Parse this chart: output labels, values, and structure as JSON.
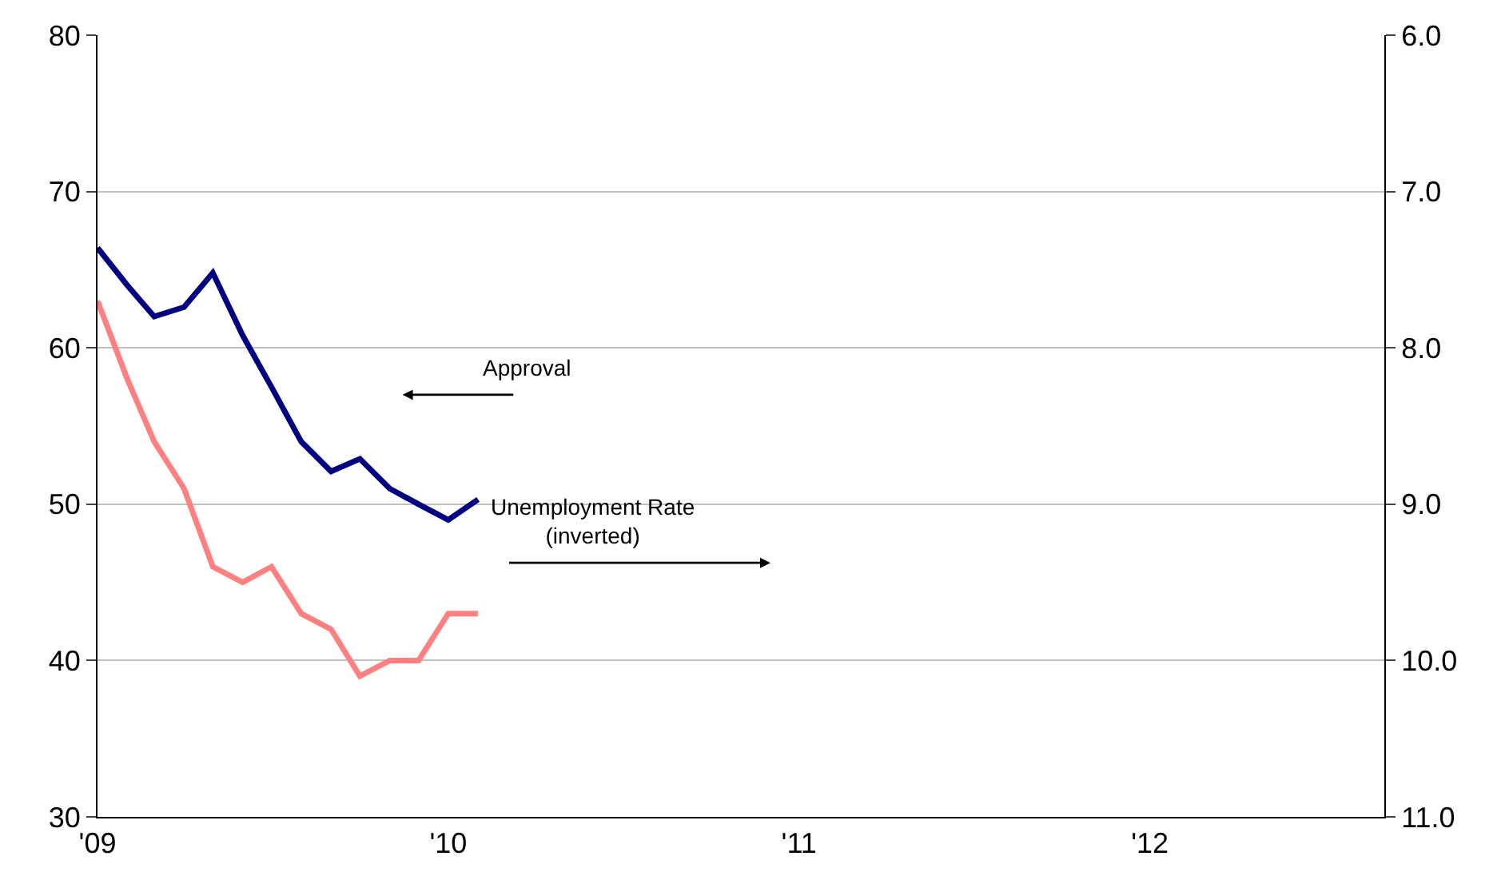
{
  "chart_data": {
    "type": "line",
    "x": [
      "2009-01",
      "2009-02",
      "2009-03",
      "2009-04",
      "2009-05",
      "2009-06",
      "2009-07",
      "2009-08",
      "2009-09",
      "2009-10",
      "2009-11",
      "2009-12",
      "2010-01",
      "2010-02"
    ],
    "series": [
      {
        "name": "Approval",
        "color": "#000080",
        "values": [
          66.4,
          64.0,
          62.0,
          62.6,
          64.8,
          60.8,
          57.5,
          54.0,
          52.1,
          52.9,
          51.0,
          50.0,
          49.0,
          50.3
        ]
      },
      {
        "name": "Unemployment Rate\n(inverted)",
        "color": "#ff8080",
        "axis": "y2",
        "values": [
          7.7,
          8.2,
          8.6,
          8.9,
          9.4,
          9.5,
          9.4,
          9.7,
          9.8,
          10.1,
          10.0,
          10.0,
          9.7,
          9.7
        ]
      }
    ],
    "xlim": [
      "2009-01",
      "2012-09"
    ],
    "xticks": [
      {
        "value": "2009-01",
        "label": "'09"
      },
      {
        "value": "2010-01",
        "label": "'10"
      },
      {
        "value": "2011-01",
        "label": "'11"
      },
      {
        "value": "2012-01",
        "label": "'12"
      }
    ],
    "ylim": [
      30,
      80
    ],
    "yticks": [
      30,
      40,
      50,
      60,
      70,
      80
    ],
    "y2lim": [
      11.0,
      6.0
    ],
    "y2ticks": [
      {
        "value": 11,
        "label": "11.0"
      },
      {
        "value": 10,
        "label": "10.0"
      },
      {
        "value": 9,
        "label": "9.0"
      },
      {
        "value": 8,
        "label": "8.0"
      },
      {
        "value": 7,
        "label": "7.0"
      },
      {
        "value": 6,
        "label": "6.0"
      }
    ],
    "grid": "y",
    "legend": false,
    "marker": "none",
    "line_style": "solid"
  }
}
